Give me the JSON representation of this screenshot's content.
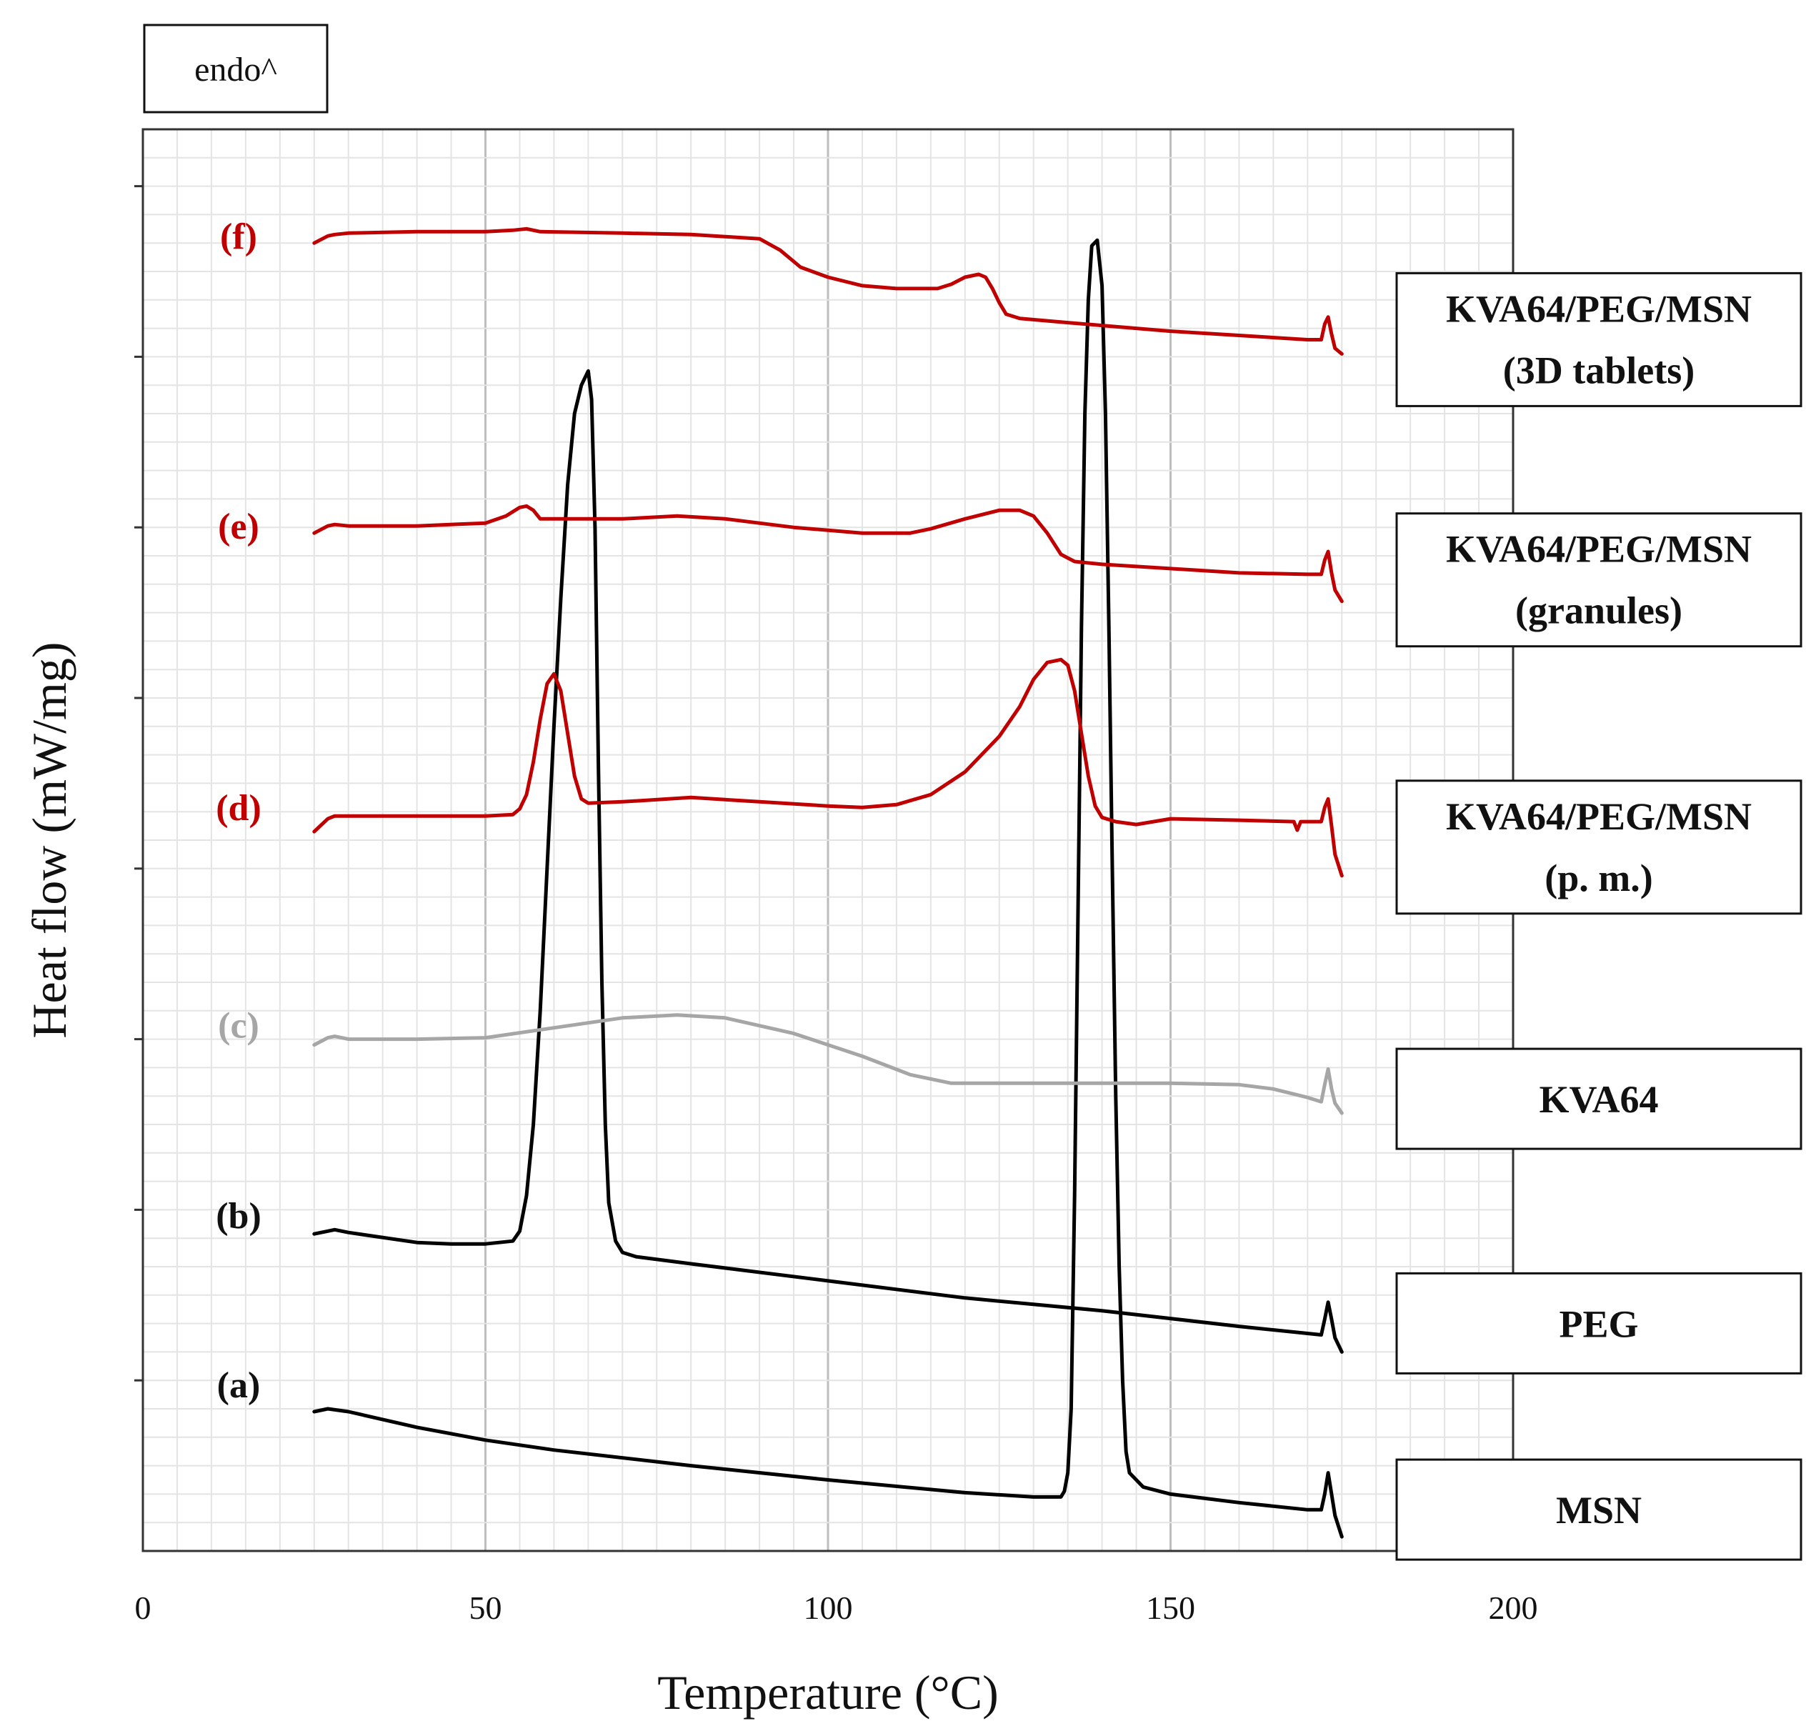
{
  "chart_data": {
    "type": "line",
    "title": "",
    "xlabel": "Temperature (°C)",
    "ylabel": "Heat flow (mW/mg)",
    "annotation": "endo^",
    "xlim": [
      0,
      200
    ],
    "xticks": [
      "0",
      "50",
      "100",
      "150",
      "200"
    ],
    "ylim": [
      0,
      100
    ],
    "grid": true,
    "series": [
      {
        "id": "a",
        "label": "(a)",
        "name": "MSN",
        "color": "#000000",
        "points": [
          [
            25,
            9.8
          ],
          [
            27,
            10.0
          ],
          [
            30,
            9.8
          ],
          [
            40,
            8.7
          ],
          [
            50,
            7.8
          ],
          [
            60,
            7.1
          ],
          [
            80,
            6.0
          ],
          [
            100,
            5.0
          ],
          [
            120,
            4.1
          ],
          [
            130,
            3.8
          ],
          [
            134,
            3.8
          ],
          [
            134.5,
            4.2
          ],
          [
            135,
            5.5
          ],
          [
            135.5,
            10
          ],
          [
            136,
            25
          ],
          [
            136.5,
            45
          ],
          [
            137,
            65
          ],
          [
            137.5,
            80
          ],
          [
            138,
            88
          ],
          [
            138.5,
            91.8
          ],
          [
            139.3,
            92.2
          ],
          [
            140,
            89
          ],
          [
            140.5,
            80
          ],
          [
            141,
            65
          ],
          [
            141.5,
            48
          ],
          [
            142,
            32
          ],
          [
            142.5,
            20
          ],
          [
            143,
            12
          ],
          [
            143.5,
            7
          ],
          [
            144,
            5.5
          ],
          [
            146,
            4.5
          ],
          [
            150,
            4.0
          ],
          [
            160,
            3.4
          ],
          [
            170,
            2.9
          ],
          [
            172,
            2.9
          ],
          [
            172.5,
            4.0
          ],
          [
            173,
            5.5
          ],
          [
            173.5,
            4.0
          ],
          [
            174,
            2.5
          ],
          [
            175,
            1.0
          ]
        ]
      },
      {
        "id": "b",
        "label": "(b)",
        "name": "PEG",
        "color": "#000000",
        "points": [
          [
            25,
            22.3
          ],
          [
            27,
            22.5
          ],
          [
            28,
            22.6
          ],
          [
            30,
            22.4
          ],
          [
            40,
            21.7
          ],
          [
            45,
            21.6
          ],
          [
            50,
            21.6
          ],
          [
            54,
            21.8
          ],
          [
            55,
            22.5
          ],
          [
            56,
            25
          ],
          [
            57,
            30
          ],
          [
            58,
            38
          ],
          [
            59,
            48
          ],
          [
            60,
            58
          ],
          [
            61,
            67
          ],
          [
            62,
            75
          ],
          [
            63,
            80
          ],
          [
            64,
            82
          ],
          [
            65,
            83
          ],
          [
            65.5,
            81
          ],
          [
            66,
            72
          ],
          [
            66.5,
            55
          ],
          [
            67,
            40
          ],
          [
            67.5,
            30
          ],
          [
            68,
            24.5
          ],
          [
            69,
            21.8
          ],
          [
            70,
            21.0
          ],
          [
            72,
            20.7
          ],
          [
            80,
            20.2
          ],
          [
            100,
            19.0
          ],
          [
            120,
            17.8
          ],
          [
            140,
            16.9
          ],
          [
            160,
            15.8
          ],
          [
            170,
            15.3
          ],
          [
            172,
            15.2
          ],
          [
            172.5,
            16.3
          ],
          [
            173,
            17.5
          ],
          [
            173.5,
            16.3
          ],
          [
            174,
            15.0
          ],
          [
            175,
            14.0
          ]
        ]
      },
      {
        "id": "c",
        "label": "(c)",
        "name": "KVA64",
        "color": "#a6a6a6",
        "points": [
          [
            25,
            35.6
          ],
          [
            27,
            36.1
          ],
          [
            28,
            36.2
          ],
          [
            30,
            36.0
          ],
          [
            40,
            36.0
          ],
          [
            50,
            36.1
          ],
          [
            60,
            36.8
          ],
          [
            70,
            37.5
          ],
          [
            78,
            37.7
          ],
          [
            85,
            37.5
          ],
          [
            95,
            36.4
          ],
          [
            105,
            34.8
          ],
          [
            112,
            33.5
          ],
          [
            118,
            32.9
          ],
          [
            125,
            32.9
          ],
          [
            140,
            32.9
          ],
          [
            150,
            32.9
          ],
          [
            160,
            32.8
          ],
          [
            165,
            32.5
          ],
          [
            170,
            31.9
          ],
          [
            172,
            31.6
          ],
          [
            172.5,
            32.8
          ],
          [
            173,
            33.9
          ],
          [
            173.5,
            32.5
          ],
          [
            174,
            31.5
          ],
          [
            175,
            30.8
          ]
        ]
      },
      {
        "id": "d",
        "label": "(d)",
        "name": "KVA64/PEG/MSN (p. m.)",
        "color": "#c00000",
        "points": [
          [
            25,
            50.6
          ],
          [
            27,
            51.5
          ],
          [
            28,
            51.7
          ],
          [
            30,
            51.7
          ],
          [
            40,
            51.7
          ],
          [
            50,
            51.7
          ],
          [
            54,
            51.8
          ],
          [
            55,
            52.2
          ],
          [
            56,
            53.2
          ],
          [
            57,
            55.5
          ],
          [
            58,
            58.5
          ],
          [
            59,
            61.0
          ],
          [
            60,
            61.7
          ],
          [
            61,
            60.5
          ],
          [
            62,
            57.5
          ],
          [
            63,
            54.5
          ],
          [
            64,
            52.9
          ],
          [
            65,
            52.6
          ],
          [
            70,
            52.7
          ],
          [
            80,
            53.0
          ],
          [
            90,
            52.7
          ],
          [
            100,
            52.4
          ],
          [
            105,
            52.3
          ],
          [
            110,
            52.5
          ],
          [
            115,
            53.2
          ],
          [
            120,
            54.8
          ],
          [
            125,
            57.3
          ],
          [
            128,
            59.4
          ],
          [
            130,
            61.3
          ],
          [
            132,
            62.5
          ],
          [
            134,
            62.7
          ],
          [
            135,
            62.3
          ],
          [
            136,
            60.5
          ],
          [
            137,
            57.5
          ],
          [
            138,
            54.5
          ],
          [
            139,
            52.4
          ],
          [
            140,
            51.6
          ],
          [
            142,
            51.3
          ],
          [
            145,
            51.1
          ],
          [
            150,
            51.5
          ],
          [
            160,
            51.4
          ],
          [
            168,
            51.3
          ],
          [
            168.5,
            50.7
          ],
          [
            169,
            51.3
          ],
          [
            172,
            51.3
          ],
          [
            172.5,
            52.3
          ],
          [
            173,
            52.9
          ],
          [
            173.5,
            51.0
          ],
          [
            174,
            49.0
          ],
          [
            175,
            47.5
          ]
        ]
      },
      {
        "id": "e",
        "label": "(e)",
        "name": "KVA64/PEG/MSN (granules)",
        "color": "#c00000",
        "points": [
          [
            25,
            71.6
          ],
          [
            27,
            72.1
          ],
          [
            28,
            72.2
          ],
          [
            30,
            72.1
          ],
          [
            40,
            72.1
          ],
          [
            50,
            72.3
          ],
          [
            53,
            72.8
          ],
          [
            55,
            73.4
          ],
          [
            56,
            73.5
          ],
          [
            57,
            73.2
          ],
          [
            58,
            72.6
          ],
          [
            60,
            72.6
          ],
          [
            70,
            72.6
          ],
          [
            78,
            72.8
          ],
          [
            85,
            72.6
          ],
          [
            95,
            72.0
          ],
          [
            105,
            71.6
          ],
          [
            112,
            71.6
          ],
          [
            115,
            71.9
          ],
          [
            120,
            72.6
          ],
          [
            125,
            73.2
          ],
          [
            128,
            73.2
          ],
          [
            130,
            72.8
          ],
          [
            132,
            71.6
          ],
          [
            134,
            70.1
          ],
          [
            136,
            69.6
          ],
          [
            140,
            69.4
          ],
          [
            150,
            69.1
          ],
          [
            160,
            68.8
          ],
          [
            170,
            68.7
          ],
          [
            172,
            68.7
          ],
          [
            172.5,
            69.7
          ],
          [
            173,
            70.3
          ],
          [
            173.5,
            68.8
          ],
          [
            174,
            67.6
          ],
          [
            175,
            66.8
          ]
        ]
      },
      {
        "id": "f",
        "label": "(f)",
        "name": "KVA64/PEG/MSN (3D tablets)",
        "color": "#c00000",
        "points": [
          [
            25,
            92.0
          ],
          [
            27,
            92.5
          ],
          [
            28,
            92.6
          ],
          [
            30,
            92.7
          ],
          [
            40,
            92.8
          ],
          [
            50,
            92.8
          ],
          [
            54,
            92.9
          ],
          [
            56,
            93.0
          ],
          [
            57,
            92.9
          ],
          [
            58,
            92.8
          ],
          [
            70,
            92.7
          ],
          [
            80,
            92.6
          ],
          [
            90,
            92.3
          ],
          [
            93,
            91.5
          ],
          [
            96,
            90.3
          ],
          [
            100,
            89.6
          ],
          [
            105,
            89.0
          ],
          [
            110,
            88.8
          ],
          [
            116,
            88.8
          ],
          [
            118,
            89.1
          ],
          [
            120,
            89.6
          ],
          [
            122,
            89.8
          ],
          [
            123,
            89.6
          ],
          [
            124,
            88.8
          ],
          [
            125,
            87.8
          ],
          [
            126,
            87.0
          ],
          [
            128,
            86.7
          ],
          [
            135,
            86.4
          ],
          [
            140,
            86.2
          ],
          [
            150,
            85.8
          ],
          [
            160,
            85.5
          ],
          [
            170,
            85.2
          ],
          [
            172,
            85.2
          ],
          [
            172.5,
            86.3
          ],
          [
            173,
            86.8
          ],
          [
            173.5,
            85.6
          ],
          [
            174,
            84.6
          ],
          [
            175,
            84.2
          ]
        ]
      }
    ]
  }
}
